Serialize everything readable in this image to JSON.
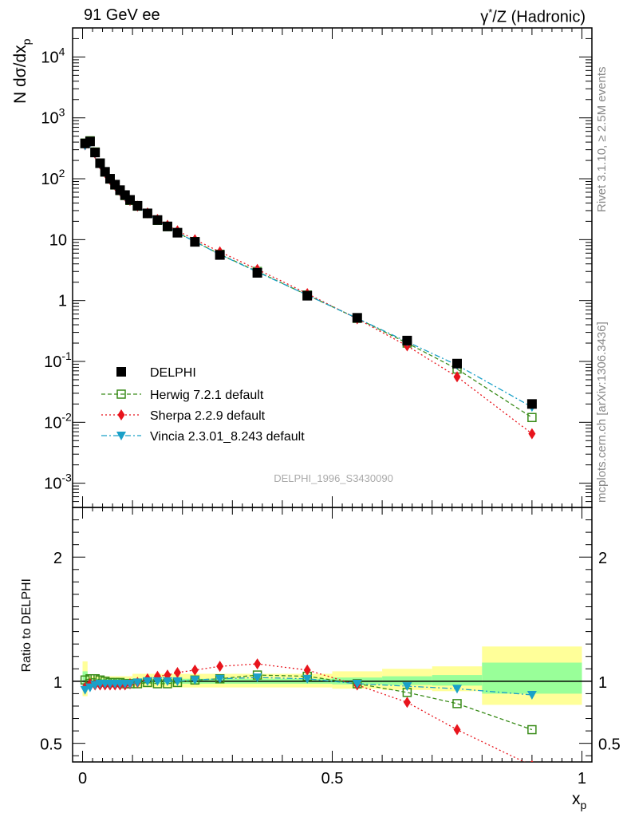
{
  "header": {
    "left": "91 GeV ee",
    "right_prefix": "γ",
    "right_sup": "*",
    "right_rest": "/Z (Hadronic)"
  },
  "side_text": {
    "rivet": "Rivet 3.1.10, ≥ 2.5M events",
    "mcplots": "mcplots.cern.ch [arXiv:1306.3436]"
  },
  "colors": {
    "data": "#000000",
    "herwig": "#3a8c1a",
    "sherpa": "#e8141c",
    "vincia": "#1aa0c8",
    "band_outer": "#ffff99",
    "band_inner": "#99ff99"
  },
  "chart_data": [
    {
      "type": "scatter",
      "title": "",
      "analysis_label": "DELPHI_1996_S3430090",
      "xlabel": "x",
      "xlabel_sub": "p",
      "ylabel": "N dσ/dx",
      "ylabel_sub": "p",
      "xlim": [
        -0.02,
        1.02
      ],
      "ylim": [
        0.0004,
        30000
      ],
      "yscale": "log",
      "ytick_labels": [
        "10⁻³",
        "10⁻²",
        "10⁻¹",
        "1",
        "10",
        "10²",
        "10³",
        "10⁴"
      ],
      "x": [
        0.005,
        0.015,
        0.025,
        0.035,
        0.045,
        0.055,
        0.065,
        0.075,
        0.085,
        0.095,
        0.11,
        0.13,
        0.15,
        0.17,
        0.19,
        0.225,
        0.275,
        0.35,
        0.45,
        0.55,
        0.65,
        0.75,
        0.9
      ],
      "legend_position": "lower-left",
      "series": [
        {
          "name": "DELPHI",
          "marker": "square-filled",
          "values": [
            380,
            410,
            270,
            180,
            130,
            100,
            80,
            65,
            54,
            45,
            36,
            27,
            21,
            16.5,
            13,
            9.2,
            5.6,
            2.85,
            1.2,
            0.52,
            0.22,
            0.092,
            0.02
          ]
        },
        {
          "name": "Herwig 7.2.1 default",
          "marker": "square-open",
          "line": "dashed",
          "values": [
            385,
            420,
            275,
            180,
            129,
            99,
            79,
            64,
            53,
            44,
            35.5,
            27,
            20.7,
            16.3,
            13,
            9.3,
            5.75,
            3.0,
            1.23,
            0.51,
            0.2,
            0.075,
            0.012
          ]
        },
        {
          "name": "Sherpa 2.2.9 default",
          "marker": "diamond",
          "line": "dotted",
          "values": [
            360,
            400,
            262,
            175,
            126,
            97,
            78,
            63,
            52,
            44,
            35.5,
            27.5,
            21.5,
            17.2,
            14,
            10,
            6.3,
            3.25,
            1.3,
            0.5,
            0.18,
            0.056,
            0.0065
          ]
        },
        {
          "name": "Vincia 2.3.01_8.243 default",
          "marker": "triangle-down",
          "line": "dashdot",
          "values": [
            350,
            390,
            262,
            175,
            127,
            98,
            78,
            63,
            52,
            44,
            35.5,
            27,
            20.7,
            16.3,
            13,
            9.3,
            5.7,
            2.95,
            1.23,
            0.51,
            0.21,
            0.087,
            0.0178
          ]
        }
      ]
    },
    {
      "type": "scatter",
      "title": "",
      "xlabel": "x",
      "xlabel_sub": "p",
      "ylabel": "Ratio to DELPHI",
      "xlim": [
        -0.02,
        1.02
      ],
      "ylim": [
        0.35,
        2.4
      ],
      "xtick_labels": [
        "0",
        "0.5",
        "1"
      ],
      "ytick_labels": [
        "0.5",
        "1",
        "2"
      ],
      "x": [
        0.005,
        0.015,
        0.025,
        0.035,
        0.045,
        0.055,
        0.065,
        0.075,
        0.085,
        0.095,
        0.11,
        0.13,
        0.15,
        0.17,
        0.19,
        0.225,
        0.275,
        0.35,
        0.45,
        0.55,
        0.65,
        0.75,
        0.9
      ],
      "uncertainty_bands": [
        {
          "x0": 0.0,
          "x1": 0.01,
          "outer": [
            0.88,
            1.16
          ],
          "inner": [
            0.93,
            1.08
          ]
        },
        {
          "x0": 0.01,
          "x1": 0.1,
          "outer": [
            0.97,
            1.04
          ],
          "inner": [
            0.985,
            1.02
          ]
        },
        {
          "x0": 0.1,
          "x1": 0.5,
          "outer": [
            0.95,
            1.06
          ],
          "inner": [
            0.98,
            1.02
          ]
        },
        {
          "x0": 0.5,
          "x1": 0.6,
          "outer": [
            0.94,
            1.08
          ],
          "inner": [
            0.975,
            1.03
          ]
        },
        {
          "x0": 0.6,
          "x1": 0.7,
          "outer": [
            0.93,
            1.1
          ],
          "inner": [
            0.97,
            1.04
          ]
        },
        {
          "x0": 0.7,
          "x1": 0.8,
          "outer": [
            0.92,
            1.12
          ],
          "inner": [
            0.965,
            1.05
          ]
        },
        {
          "x0": 0.8,
          "x1": 1.0,
          "outer": [
            0.81,
            1.28
          ],
          "inner": [
            0.9,
            1.15
          ]
        }
      ],
      "series": [
        {
          "name": "Herwig 7.2.1 default",
          "values": [
            1.01,
            1.02,
            1.02,
            1.01,
            1.0,
            0.99,
            0.99,
            0.99,
            0.98,
            0.98,
            0.98,
            0.99,
            0.98,
            0.98,
            0.99,
            1.01,
            1.02,
            1.05,
            1.04,
            0.98,
            0.91,
            0.82,
            0.61
          ]
        },
        {
          "name": "Sherpa 2.2.9 default",
          "values": [
            0.95,
            0.98,
            0.97,
            0.97,
            0.97,
            0.97,
            0.97,
            0.97,
            0.97,
            0.98,
            0.99,
            1.02,
            1.04,
            1.05,
            1.07,
            1.09,
            1.12,
            1.14,
            1.09,
            0.97,
            0.83,
            0.61,
            0.32
          ]
        },
        {
          "name": "Vincia 2.3.01_8.243 default",
          "values": [
            0.93,
            0.95,
            0.97,
            0.98,
            0.98,
            0.98,
            0.98,
            0.98,
            0.98,
            0.98,
            0.99,
            1.0,
            1.0,
            1.0,
            1.0,
            1.01,
            1.02,
            1.03,
            1.02,
            0.98,
            0.96,
            0.94,
            0.89
          ]
        }
      ]
    }
  ]
}
